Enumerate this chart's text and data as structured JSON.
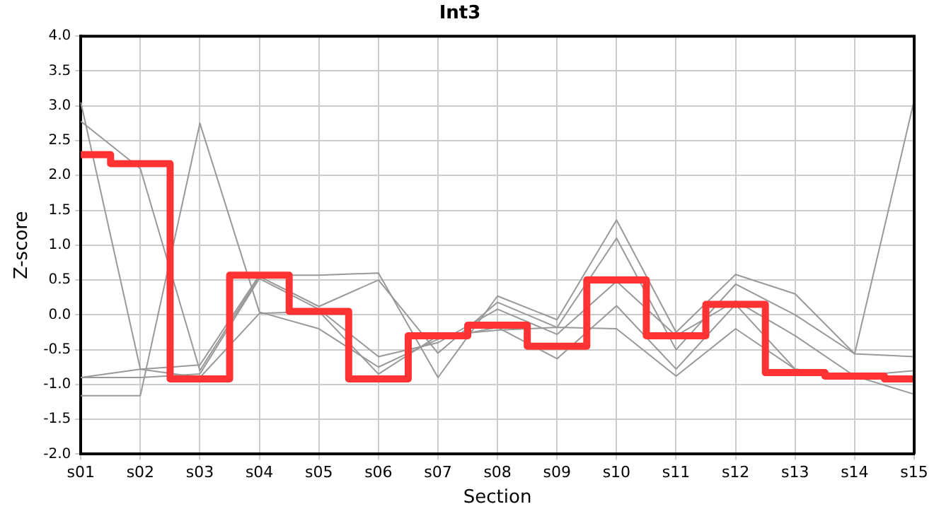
{
  "chart_data": {
    "type": "line",
    "title": "Int3",
    "xlabel": "Section",
    "ylabel": "Z-score",
    "categories": [
      "s01",
      "s02",
      "s03",
      "s04",
      "s05",
      "s06",
      "s07",
      "s08",
      "s09",
      "s10",
      "s11",
      "s12",
      "s13",
      "s14",
      "s15"
    ],
    "series": [
      {
        "type": "line",
        "color": "#999999",
        "values": [
          3.05,
          -0.78,
          -0.72,
          0.57,
          0.57,
          0.6,
          -0.9,
          0.27,
          -0.07,
          1.36,
          -0.25,
          0.58,
          0.3,
          -0.56,
          3.08
        ]
      },
      {
        "type": "line",
        "color": "#999999",
        "values": [
          2.78,
          2.1,
          -0.8,
          0.55,
          0.12,
          0.5,
          -0.55,
          0.18,
          -0.18,
          1.1,
          -0.5,
          0.44,
          0.0,
          -0.56,
          -0.6
        ]
      },
      {
        "type": "line",
        "color": "#999999",
        "values": [
          -0.9,
          -0.9,
          -0.85,
          0.52,
          0.08,
          -0.6,
          -0.4,
          0.08,
          -0.28,
          0.48,
          -0.3,
          0.2,
          -0.3,
          -0.88,
          -0.8
        ]
      },
      {
        "type": "line",
        "color": "#999999",
        "values": [
          -1.16,
          -1.16,
          2.75,
          0.04,
          -0.2,
          -0.75,
          -0.35,
          -0.18,
          -0.63,
          0.13,
          -0.78,
          0.15,
          -0.78,
          -0.88,
          -0.88
        ]
      },
      {
        "type": "line",
        "color": "#999999",
        "values": [
          -0.9,
          -0.78,
          -0.9,
          0.02,
          0.05,
          -0.85,
          -0.3,
          -0.22,
          -0.18,
          -0.2,
          -0.88,
          -0.2,
          -0.78,
          -0.88,
          -1.14
        ]
      },
      {
        "type": "step",
        "color": "#ff3333",
        "values": [
          2.3,
          2.17,
          -0.92,
          0.57,
          0.05,
          -0.92,
          -0.3,
          -0.15,
          -0.45,
          0.5,
          -0.3,
          0.15,
          -0.83,
          -0.88,
          -0.92
        ]
      }
    ],
    "ylim": [
      -2,
      4
    ],
    "yticks": [
      {
        "value": -2,
        "label": "-2.0"
      },
      {
        "value": -1.5,
        "label": "-1.5"
      },
      {
        "value": -1,
        "label": "-1.0"
      },
      {
        "value": -0.5,
        "label": "-0.5"
      },
      {
        "value": 0,
        "label": "0.0"
      },
      {
        "value": 0.5,
        "label": "0.5"
      },
      {
        "value": 1,
        "label": "1.0"
      },
      {
        "value": 1.5,
        "label": "1.5"
      },
      {
        "value": 2,
        "label": "2.0"
      },
      {
        "value": 2.5,
        "label": "2.5"
      },
      {
        "value": 3,
        "label": "3.0"
      },
      {
        "value": 3.5,
        "label": "3.5"
      },
      {
        "value": 4,
        "label": "4.0"
      }
    ],
    "grid": true,
    "legend": false,
    "marker": "none"
  }
}
